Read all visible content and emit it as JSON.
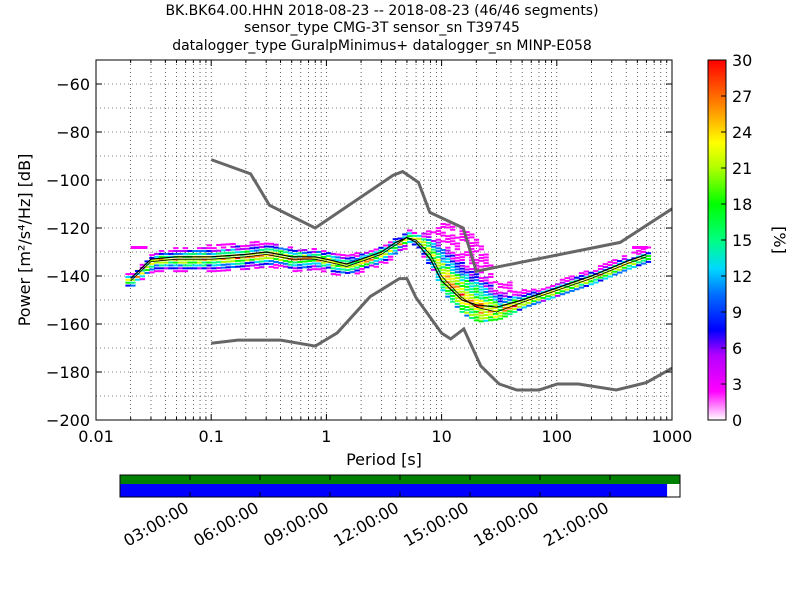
{
  "title_lines": [
    "BK.BK64.00.HHN   2018-08-23 -- 2018-08-23  (46/46 segments)",
    "sensor_type CMG-3T sensor_sn T39745",
    "datalogger_type GuralpMinimus+ datalogger_sn MINP-E058"
  ],
  "colorbar": {
    "label": "[%]",
    "ticks": [
      "30",
      "27",
      "24",
      "21",
      "18",
      "15",
      "12",
      "9",
      "6",
      "3",
      "0"
    ],
    "range": [
      0,
      30
    ],
    "colormap": "pqlx"
  },
  "timeline": {
    "labels": [
      "03:00:00",
      "06:00:00",
      "09:00:00",
      "12:00:00",
      "15:00:00",
      "18:00:00",
      "21:00:00"
    ],
    "top_bar_color": "#008000",
    "bottom_bar_color": "#0000ff",
    "bottom_bar_coverage": 0.977
  },
  "chart_data": {
    "type": "heatmap",
    "xlabel": "Period [s]",
    "ylabel": "Power [m²/s⁴/Hz] [dB]",
    "x_scale": "log",
    "xlim": [
      0.01,
      1000
    ],
    "ylim": [
      -200,
      -50
    ],
    "x_ticks": [
      "0.01",
      "0.1",
      "1",
      "10",
      "100",
      "1000"
    ],
    "y_ticks": [
      "−60",
      "−80",
      "−100",
      "−120",
      "−140",
      "−160",
      "−180",
      "−200"
    ],
    "grid": true,
    "nhnm": {
      "x": [
        0.1,
        0.22,
        0.32,
        0.8,
        3.8,
        4.6,
        6.3,
        7.9,
        15.4,
        20,
        354.8,
        1000
      ],
      "y": [
        -91.5,
        -97.4,
        -110.5,
        -120,
        -98,
        -96.5,
        -101,
        -113.5,
        -120,
        -138,
        -126,
        -112
      ]
    },
    "nlnm": {
      "x": [
        0.1,
        0.17,
        0.4,
        0.8,
        1.24,
        2.4,
        4.3,
        5,
        6,
        10,
        12,
        15.6,
        21.9,
        31.6,
        45,
        70,
        101,
        154,
        328,
        600,
        1000
      ],
      "y": [
        -168,
        -166.7,
        -166.7,
        -169.2,
        -163.7,
        -148.6,
        -141.1,
        -141.1,
        -149,
        -163.8,
        -166.2,
        -162.1,
        -177.5,
        -185,
        -187.5,
        -187.5,
        -185,
        -185,
        -187.5,
        -184.4,
        -178.4
      ]
    },
    "mode": {
      "x": [
        0.02,
        0.03,
        0.05,
        0.1,
        0.2,
        0.3,
        0.5,
        0.8,
        1,
        1.5,
        2,
        3,
        4,
        5,
        6,
        8,
        10,
        15,
        20,
        30,
        50,
        100,
        200,
        400,
        600
      ],
      "y": [
        -142,
        -134,
        -133,
        -133,
        -132,
        -131,
        -133,
        -133,
        -134,
        -136,
        -134,
        -131,
        -127,
        -124,
        -125,
        -131,
        -140,
        -149,
        -153,
        -155,
        -151,
        -146,
        -141,
        -135,
        -132
      ]
    },
    "mean": {
      "x": [
        0.02,
        0.03,
        0.05,
        0.1,
        0.2,
        0.3,
        0.5,
        0.8,
        1,
        1.5,
        2,
        3,
        4,
        5,
        6,
        8,
        10,
        15,
        20,
        30,
        50,
        100,
        200,
        400,
        600
      ],
      "y": [
        -141,
        -133,
        -132,
        -132,
        -131,
        -130,
        -132,
        -132,
        -133,
        -135,
        -133,
        -130,
        -126,
        -124,
        -126,
        -133,
        -142,
        -150,
        -152,
        -153,
        -150,
        -145,
        -140,
        -134,
        -131
      ]
    },
    "pdf_band": {
      "x": [
        0.02,
        0.03,
        0.05,
        0.1,
        0.2,
        0.3,
        0.5,
        0.8,
        1,
        1.5,
        2,
        3,
        4,
        5,
        6,
        8,
        10,
        15,
        20,
        30,
        50,
        100,
        200,
        400,
        600
      ],
      "lower": [
        -144,
        -138,
        -138,
        -138,
        -137,
        -136,
        -138,
        -137,
        -139,
        -140,
        -138,
        -135,
        -131,
        -127,
        -129,
        -137,
        -147,
        -156,
        -159,
        -158,
        -153,
        -148,
        -143,
        -137,
        -134
      ],
      "upper": [
        -139,
        -130,
        -128,
        -127,
        -126,
        -125,
        -128,
        -128,
        -130,
        -131,
        -130,
        -127,
        -123,
        -121,
        -122,
        -120,
        -118,
        -120,
        -125,
        -140,
        -146,
        -141,
        -136,
        -130,
        -128
      ]
    }
  }
}
